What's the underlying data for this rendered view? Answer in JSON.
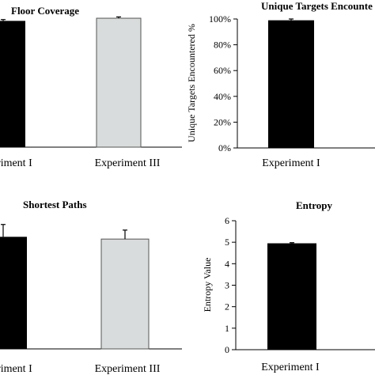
{
  "chart_data": [
    {
      "type": "bar",
      "title": "Floor Coverage",
      "categories": [
        "Experiment I",
        "Experiment III"
      ],
      "values": [
        0.95,
        0.97
      ],
      "errors": [
        0.01,
        0.01
      ],
      "colors": [
        "#000000",
        "#d9dcdc"
      ],
      "ylim": [
        0,
        1
      ],
      "ylabel": "",
      "xlabel": ""
    },
    {
      "type": "bar",
      "title": "Unique Targets Encounte",
      "categories": [
        "Experiment I"
      ],
      "values": [
        99
      ],
      "errors": [
        1
      ],
      "colors": [
        "#000000"
      ],
      "ylim": [
        0,
        100
      ],
      "yticks": [
        "0%",
        "20%",
        "40%",
        "60%",
        "80%",
        "100%"
      ],
      "ylabel": "Unique Targets Encountered %",
      "xlabel": ""
    },
    {
      "type": "bar",
      "title": "Shortest Paths",
      "categories": [
        "Experiment I",
        "Experiment III"
      ],
      "values": [
        1.0,
        0.98
      ],
      "errors": [
        0.11,
        0.08
      ],
      "colors": [
        "#000000",
        "#d9dcdc"
      ],
      "ylim": [
        0,
        1.2
      ],
      "ylabel": "",
      "xlabel": ""
    },
    {
      "type": "bar",
      "title": "Entropy",
      "categories": [
        "Experiment I"
      ],
      "values": [
        4.95
      ],
      "errors": [
        0.03
      ],
      "colors": [
        "#000000"
      ],
      "ylim": [
        0,
        6
      ],
      "yticks": [
        "0",
        "1",
        "2",
        "3",
        "4",
        "5",
        "6"
      ],
      "ylabel": "Entropy Value",
      "xlabel": ""
    }
  ]
}
